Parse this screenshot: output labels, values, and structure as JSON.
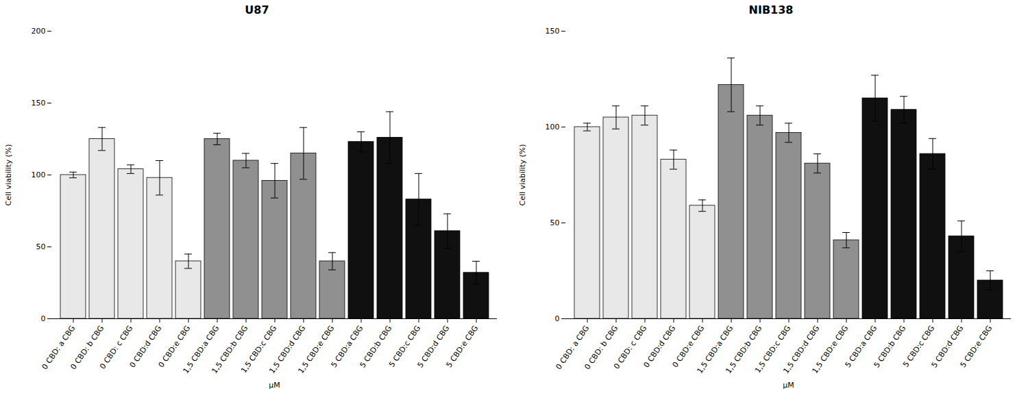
{
  "chart_data": [
    {
      "type": "bar",
      "title": "U87",
      "ylabel": "Cell viability (%)",
      "xlabel": "μM",
      "categories": [
        "0 CBD: a CBG",
        "0 CBD: b CBG",
        "0 CBD: c CBG",
        "0 CBD:d CBG",
        "0 CBD:e CBG",
        "1,5 CBD:a CBG",
        "1,5 CBD:b CBG",
        "1,5 CBD:c CBG",
        "1,5 CBD:d CBG",
        "1,5 CBD:e CBG",
        "5 CBD:a CBG",
        "5 CBD:b CBG",
        "5 CBD:c CBG",
        "5 CBD:d CBG",
        "5 CBD:e CBG"
      ],
      "values": [
        100,
        125,
        104,
        98,
        40,
        125,
        110,
        96,
        115,
        40,
        123,
        126,
        83,
        61,
        32
      ],
      "errors": [
        2,
        8,
        3,
        12,
        5,
        4,
        5,
        12,
        18,
        6,
        7,
        18,
        18,
        12,
        8
      ],
      "colors": [
        "#e8e8e8",
        "#e8e8e8",
        "#e8e8e8",
        "#e8e8e8",
        "#e8e8e8",
        "#909090",
        "#909090",
        "#909090",
        "#909090",
        "#909090",
        "#101010",
        "#101010",
        "#101010",
        "#101010",
        "#101010"
      ],
      "ylim": [
        0,
        200
      ],
      "yticks": [
        0,
        50,
        100,
        150,
        200
      ],
      "grid": false
    },
    {
      "type": "bar",
      "title": "NIB138",
      "ylabel": "Cell viability (%)",
      "xlabel": "μM",
      "categories": [
        "0 CBD: a CBG",
        "0 CBD: b CBG",
        "0 CBD: c CBG",
        "0 CBD:d CBG",
        "0 CBD:e CBG",
        "1,5 CBD:a CBG",
        "1,5 CBD:b CBG",
        "1,5 CBD:c CBG",
        "1,5 CBD:d CBG",
        "1,5 CBD:e CBG",
        "5 CBD:a CBG",
        "5 CBD:b CBG",
        "5 CBD:c CBG",
        "5 CBD:d CBG",
        "5 CBD:e CBG"
      ],
      "values": [
        100,
        105,
        106,
        83,
        59,
        122,
        106,
        97,
        81,
        41,
        115,
        109,
        86,
        43,
        20
      ],
      "errors": [
        2,
        6,
        5,
        5,
        3,
        14,
        5,
        5,
        5,
        4,
        12,
        7,
        8,
        8,
        5
      ],
      "colors": [
        "#e8e8e8",
        "#e8e8e8",
        "#e8e8e8",
        "#e8e8e8",
        "#e8e8e8",
        "#909090",
        "#909090",
        "#909090",
        "#909090",
        "#909090",
        "#101010",
        "#101010",
        "#101010",
        "#101010",
        "#101010"
      ],
      "ylim": [
        0,
        150
      ],
      "yticks": [
        0,
        50,
        100,
        150
      ],
      "grid": false
    }
  ]
}
